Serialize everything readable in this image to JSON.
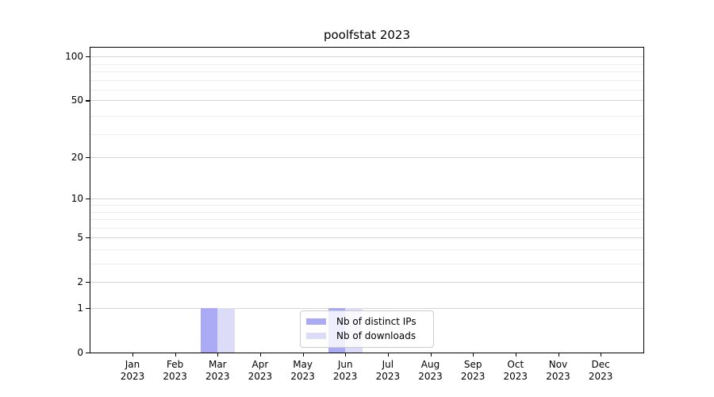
{
  "chart_data": {
    "type": "bar",
    "title": "poolfstat 2023",
    "year": "2023",
    "months": [
      "Jan",
      "Feb",
      "Mar",
      "Apr",
      "May",
      "Jun",
      "Jul",
      "Aug",
      "Sep",
      "Oct",
      "Nov",
      "Dec"
    ],
    "series": [
      {
        "name": "Nb of distinct IPs",
        "color": "#aaaaf5",
        "values": [
          0,
          0,
          1,
          0,
          0,
          1,
          0,
          0,
          0,
          0,
          0,
          0
        ]
      },
      {
        "name": "Nb of downloads",
        "color": "#dcdcf8",
        "values": [
          0,
          0,
          1,
          0,
          0,
          1,
          0,
          0,
          0,
          0,
          0,
          0
        ]
      }
    ],
    "xlabel": "",
    "ylabel": "",
    "yscale": "log10(1+y)",
    "yticks": [
      0,
      1,
      2,
      5,
      10,
      20,
      50,
      100
    ],
    "minor_gridlines": [
      3,
      4,
      6,
      7,
      8,
      9,
      29,
      39,
      59,
      69,
      79,
      89
    ],
    "ylim": [
      0,
      115
    ],
    "grid": true,
    "legend_position": "lower center"
  }
}
